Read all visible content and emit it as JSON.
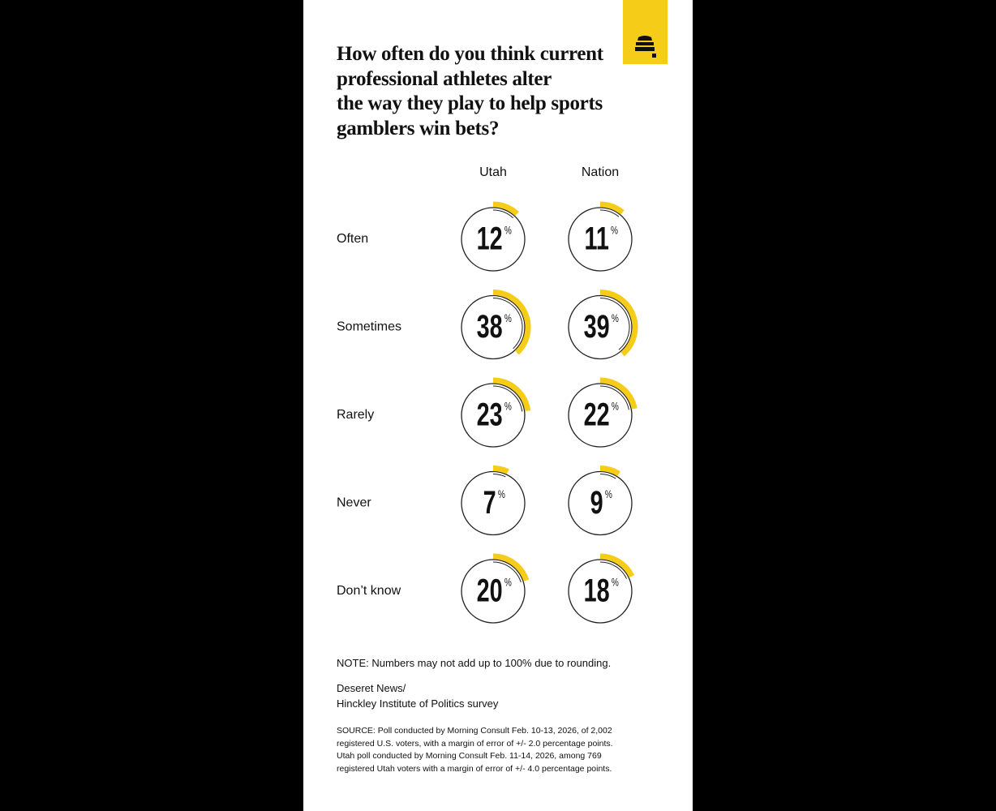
{
  "chart_data": {
    "type": "ring-grid",
    "title": "How often do you think current\nprofessional athletes alter\nthe way they play to help sports\ngamblers win bets?",
    "categories": [
      "Often",
      "Sometimes",
      "Rarely",
      "Never",
      "Don’t know"
    ],
    "series": [
      {
        "name": "Utah",
        "color": "#f5cc17",
        "values": [
          12,
          38,
          23,
          7,
          20
        ]
      },
      {
        "name": "Nation",
        "color": "#f5cc17",
        "values": [
          11,
          39,
          22,
          9,
          18
        ]
      }
    ],
    "unit": "%",
    "note": "NOTE: Numbers may not add up to 100% due to rounding.",
    "credit": "Deseret News/\nHinckley Institute of Politics survey",
    "source": "SOURCE: Poll conducted by Morning Consult Feb. 10-13, 2026, of 2,002\nregistered U.S. voters, with a margin of error of +/- 2.0 percentage points.\nUtah poll conducted by Morning Consult Feb. 11-14, 2026, among 769\nregistered Utah voters with a margin of error of +/- 4.0 percentage points."
  }
}
